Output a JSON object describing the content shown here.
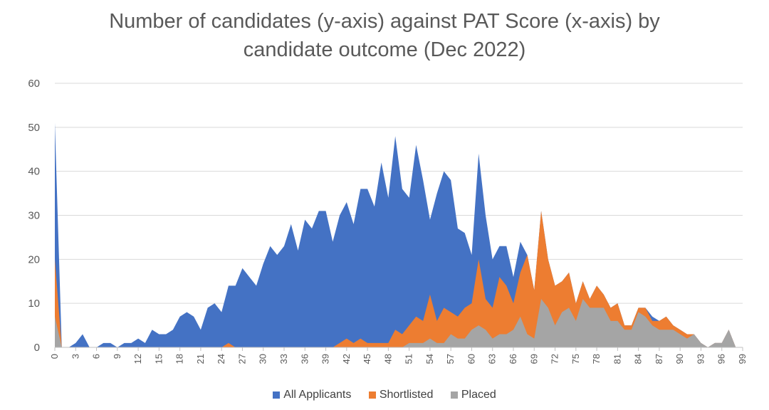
{
  "chart_data": {
    "type": "area",
    "title_line1": "Number of candidates (y-axis) against PAT Score (x-axis) by",
    "title_line2": "candidate outcome (Dec 2022)",
    "xlabel": "",
    "ylabel": "",
    "x_range": [
      0,
      99
    ],
    "x_tick_step": 3,
    "ylim": [
      0,
      60
    ],
    "y_ticks": [
      0,
      10,
      20,
      30,
      40,
      50,
      60
    ],
    "grid": true,
    "legend_position": "bottom",
    "series": [
      {
        "name": "All Applicants",
        "color": "#4472C4",
        "values": [
          51,
          0,
          0,
          1,
          3,
          0,
          0,
          1,
          1,
          0,
          1,
          1,
          2,
          1,
          4,
          3,
          3,
          4,
          7,
          8,
          7,
          4,
          9,
          10,
          8,
          14,
          14,
          18,
          16,
          14,
          19,
          23,
          21,
          23,
          28,
          22,
          29,
          27,
          31,
          31,
          24,
          30,
          33,
          28,
          36,
          36,
          32,
          42,
          34,
          48,
          36,
          34,
          46,
          38,
          29,
          35,
          40,
          38,
          27,
          26,
          21,
          44,
          30,
          20,
          23,
          23,
          16,
          24,
          21,
          13,
          31,
          20,
          14,
          15,
          17,
          10,
          15,
          11,
          14,
          12,
          9,
          10,
          5,
          5,
          9,
          9,
          7,
          6,
          7,
          5,
          4,
          3,
          3,
          1,
          0,
          1,
          1,
          4,
          0,
          0
        ]
      },
      {
        "name": "Shortlisted",
        "color": "#ED7D31",
        "values": [
          20,
          0,
          0,
          0,
          0,
          0,
          0,
          0,
          0,
          0,
          0,
          0,
          0,
          0,
          0,
          0,
          0,
          0,
          0,
          0,
          0,
          0,
          0,
          0,
          0,
          1,
          0,
          0,
          0,
          0,
          0,
          0,
          0,
          0,
          0,
          0,
          0,
          0,
          0,
          0,
          0,
          1,
          2,
          1,
          2,
          1,
          1,
          1,
          1,
          4,
          3,
          5,
          7,
          6,
          12,
          6,
          9,
          8,
          7,
          9,
          10,
          20,
          11,
          9,
          16,
          14,
          10,
          17,
          21,
          13,
          31,
          20,
          14,
          15,
          17,
          10,
          15,
          11,
          14,
          12,
          9,
          10,
          5,
          5,
          9,
          9,
          6,
          6,
          7,
          5,
          4,
          3,
          3,
          1,
          0,
          1,
          1,
          4,
          0,
          0
        ]
      },
      {
        "name": "Placed",
        "color": "#A5A5A5",
        "values": [
          7,
          0,
          0,
          0,
          0,
          0,
          0,
          0,
          0,
          0,
          0,
          0,
          0,
          0,
          0,
          0,
          0,
          0,
          0,
          0,
          0,
          0,
          0,
          0,
          0,
          0,
          0,
          0,
          0,
          0,
          0,
          0,
          0,
          0,
          0,
          0,
          0,
          0,
          0,
          0,
          0,
          0,
          0,
          0,
          0,
          0,
          0,
          0,
          0,
          0,
          0,
          1,
          1,
          1,
          2,
          1,
          1,
          3,
          2,
          2,
          4,
          5,
          4,
          2,
          3,
          3,
          4,
          7,
          3,
          2,
          11,
          9,
          5,
          8,
          9,
          6,
          11,
          9,
          9,
          9,
          6,
          6,
          4,
          4,
          8,
          7,
          5,
          4,
          4,
          4,
          3,
          2,
          3,
          1,
          0,
          1,
          1,
          4,
          0,
          0
        ]
      }
    ]
  }
}
